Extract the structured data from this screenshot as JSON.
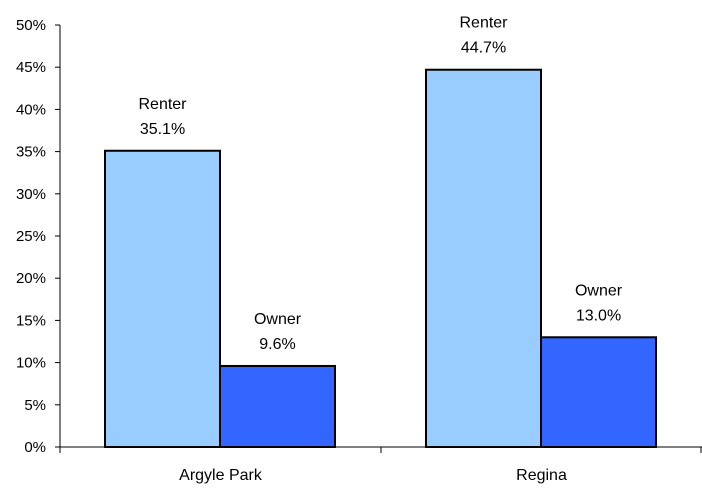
{
  "chart_data": {
    "type": "bar",
    "categories": [
      "Argyle Park",
      "Regina"
    ],
    "series": [
      {
        "name": "Renter",
        "values": [
          35.1,
          44.7
        ],
        "color": "#99ccff"
      },
      {
        "name": "Owner",
        "values": [
          9.6,
          13.0
        ],
        "color": "#3366ff"
      }
    ],
    "data_labels": [
      [
        "35.1%",
        "44.7%"
      ],
      [
        "9.6%",
        "13.0%"
      ]
    ],
    "y_ticks": [
      "0%",
      "5%",
      "10%",
      "15%",
      "20%",
      "25%",
      "30%",
      "35%",
      "40%",
      "45%",
      "50%"
    ],
    "ylim": [
      0,
      50
    ],
    "y_unit": "%",
    "grid": false,
    "legend": "none",
    "title": "",
    "xlabel": "",
    "ylabel": ""
  }
}
